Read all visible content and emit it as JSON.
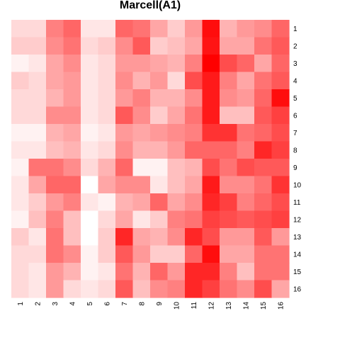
{
  "chart_data": {
    "type": "heatmap",
    "title": "Marcell(A1)",
    "xlabel": "",
    "ylabel": "",
    "x_labels": [
      "1",
      "2",
      "3",
      "4",
      "5",
      "6",
      "7",
      "8",
      "9",
      "10",
      "11",
      "12",
      "13",
      "14",
      "15",
      "16"
    ],
    "y_labels": [
      "1",
      "2",
      "3",
      "4",
      "5",
      "6",
      "7",
      "8",
      "9",
      "10",
      "11",
      "12",
      "13",
      "14",
      "15",
      "16"
    ],
    "color_scale": {
      "low": "#ffffff",
      "high": "#ff0000",
      "range": [
        0,
        1
      ]
    },
    "values": [
      [
        0.15,
        0.15,
        0.5,
        0.6,
        0.1,
        0.1,
        0.6,
        0.55,
        0.35,
        0.2,
        0.4,
        0.95,
        0.3,
        0.4,
        0.45,
        0.6
      ],
      [
        0.2,
        0.2,
        0.45,
        0.55,
        0.15,
        0.2,
        0.45,
        0.65,
        0.2,
        0.25,
        0.35,
        0.92,
        0.35,
        0.35,
        0.55,
        0.65
      ],
      [
        0.05,
        0.1,
        0.35,
        0.45,
        0.1,
        0.15,
        0.4,
        0.4,
        0.35,
        0.3,
        0.5,
        1.0,
        0.7,
        0.6,
        0.35,
        0.6
      ],
      [
        0.2,
        0.15,
        0.35,
        0.4,
        0.1,
        0.15,
        0.45,
        0.3,
        0.4,
        0.15,
        0.7,
        0.9,
        0.5,
        0.35,
        0.55,
        0.65
      ],
      [
        0.15,
        0.15,
        0.3,
        0.4,
        0.1,
        0.15,
        0.4,
        0.5,
        0.3,
        0.3,
        0.45,
        0.9,
        0.45,
        0.4,
        0.6,
        0.95
      ],
      [
        0.15,
        0.15,
        0.45,
        0.45,
        0.1,
        0.15,
        0.65,
        0.45,
        0.2,
        0.35,
        0.55,
        0.9,
        0.25,
        0.25,
        0.65,
        0.75
      ],
      [
        0.05,
        0.05,
        0.3,
        0.35,
        0.05,
        0.1,
        0.4,
        0.35,
        0.4,
        0.45,
        0.5,
        0.8,
        0.8,
        0.55,
        0.6,
        0.7
      ],
      [
        0.1,
        0.1,
        0.25,
        0.3,
        0.1,
        0.15,
        0.45,
        0.3,
        0.3,
        0.4,
        0.6,
        0.6,
        0.6,
        0.5,
        0.85,
        0.75
      ],
      [
        0.05,
        0.55,
        0.55,
        0.45,
        0.15,
        0.3,
        0.6,
        0.05,
        0.05,
        0.25,
        0.3,
        0.7,
        0.55,
        0.7,
        0.65,
        0.65
      ],
      [
        0.1,
        0.35,
        0.6,
        0.6,
        0.0,
        0.35,
        0.45,
        0.45,
        0.1,
        0.25,
        0.35,
        0.9,
        0.45,
        0.45,
        0.55,
        0.8
      ],
      [
        0.1,
        0.2,
        0.4,
        0.5,
        0.1,
        0.05,
        0.3,
        0.35,
        0.6,
        0.35,
        0.45,
        0.85,
        0.75,
        0.5,
        0.6,
        0.7
      ],
      [
        0.05,
        0.25,
        0.5,
        0.25,
        0.0,
        0.15,
        0.35,
        0.1,
        0.2,
        0.5,
        0.55,
        0.75,
        0.7,
        0.65,
        0.7,
        0.75
      ],
      [
        0.2,
        0.1,
        0.55,
        0.25,
        0.0,
        0.2,
        0.85,
        0.35,
        0.3,
        0.45,
        0.85,
        0.7,
        0.4,
        0.4,
        0.65,
        0.4
      ],
      [
        0.15,
        0.15,
        0.55,
        0.45,
        0.05,
        0.2,
        0.65,
        0.4,
        0.2,
        0.2,
        0.6,
        0.95,
        0.35,
        0.35,
        0.55,
        0.55
      ],
      [
        0.15,
        0.1,
        0.4,
        0.3,
        0.05,
        0.1,
        0.55,
        0.3,
        0.6,
        0.4,
        0.85,
        0.85,
        0.5,
        0.25,
        0.55,
        0.55
      ],
      [
        0.15,
        0.1,
        0.4,
        0.15,
        0.1,
        0.15,
        0.65,
        0.25,
        0.45,
        0.5,
        0.85,
        0.75,
        0.55,
        0.45,
        0.7,
        0.35
      ]
    ]
  }
}
